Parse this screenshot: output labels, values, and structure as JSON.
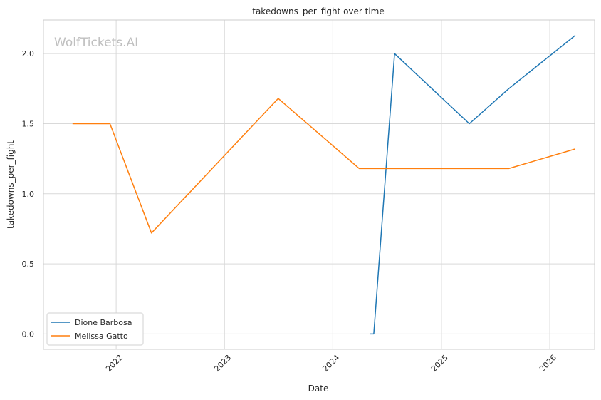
{
  "chart_data": {
    "type": "line",
    "title": "takedowns_per_fight over time",
    "xlabel": "Date",
    "ylabel": "takedowns_per_fight",
    "watermark": "WolfTickets.AI",
    "xlim": [
      "2021-05-01",
      "2026-06-01"
    ],
    "ylim": [
      -0.11,
      2.24
    ],
    "x_ticks": [
      {
        "value": "2022-01-01",
        "label": "2022"
      },
      {
        "value": "2023-01-01",
        "label": "2023"
      },
      {
        "value": "2024-01-01",
        "label": "2024"
      },
      {
        "value": "2025-01-01",
        "label": "2025"
      },
      {
        "value": "2026-01-01",
        "label": "2026"
      }
    ],
    "y_ticks": [
      {
        "value": 0.0,
        "label": "0.0"
      },
      {
        "value": 0.5,
        "label": "0.5"
      },
      {
        "value": 1.0,
        "label": "1.0"
      },
      {
        "value": 1.5,
        "label": "1.5"
      },
      {
        "value": 2.0,
        "label": "2.0"
      }
    ],
    "grid": true,
    "legend_position": "lower-left",
    "series": [
      {
        "name": "Dione Barbosa",
        "color": "#1f77b4",
        "points": [
          {
            "x": "2024-05-04",
            "y": 0.0
          },
          {
            "x": "2024-05-18",
            "y": 0.0
          },
          {
            "x": "2024-07-27",
            "y": 2.0
          },
          {
            "x": "2025-04-05",
            "y": 1.5
          },
          {
            "x": "2025-08-16",
            "y": 1.75
          },
          {
            "x": "2026-03-28",
            "y": 2.13
          }
        ]
      },
      {
        "name": "Melissa Gatto",
        "color": "#ff7f0e",
        "points": [
          {
            "x": "2021-08-07",
            "y": 1.5
          },
          {
            "x": "2021-12-11",
            "y": 1.5
          },
          {
            "x": "2022-04-30",
            "y": 0.72
          },
          {
            "x": "2023-07-01",
            "y": 1.68
          },
          {
            "x": "2024-03-30",
            "y": 1.18
          },
          {
            "x": "2025-08-16",
            "y": 1.18
          },
          {
            "x": "2026-03-28",
            "y": 1.32
          }
        ]
      }
    ]
  }
}
